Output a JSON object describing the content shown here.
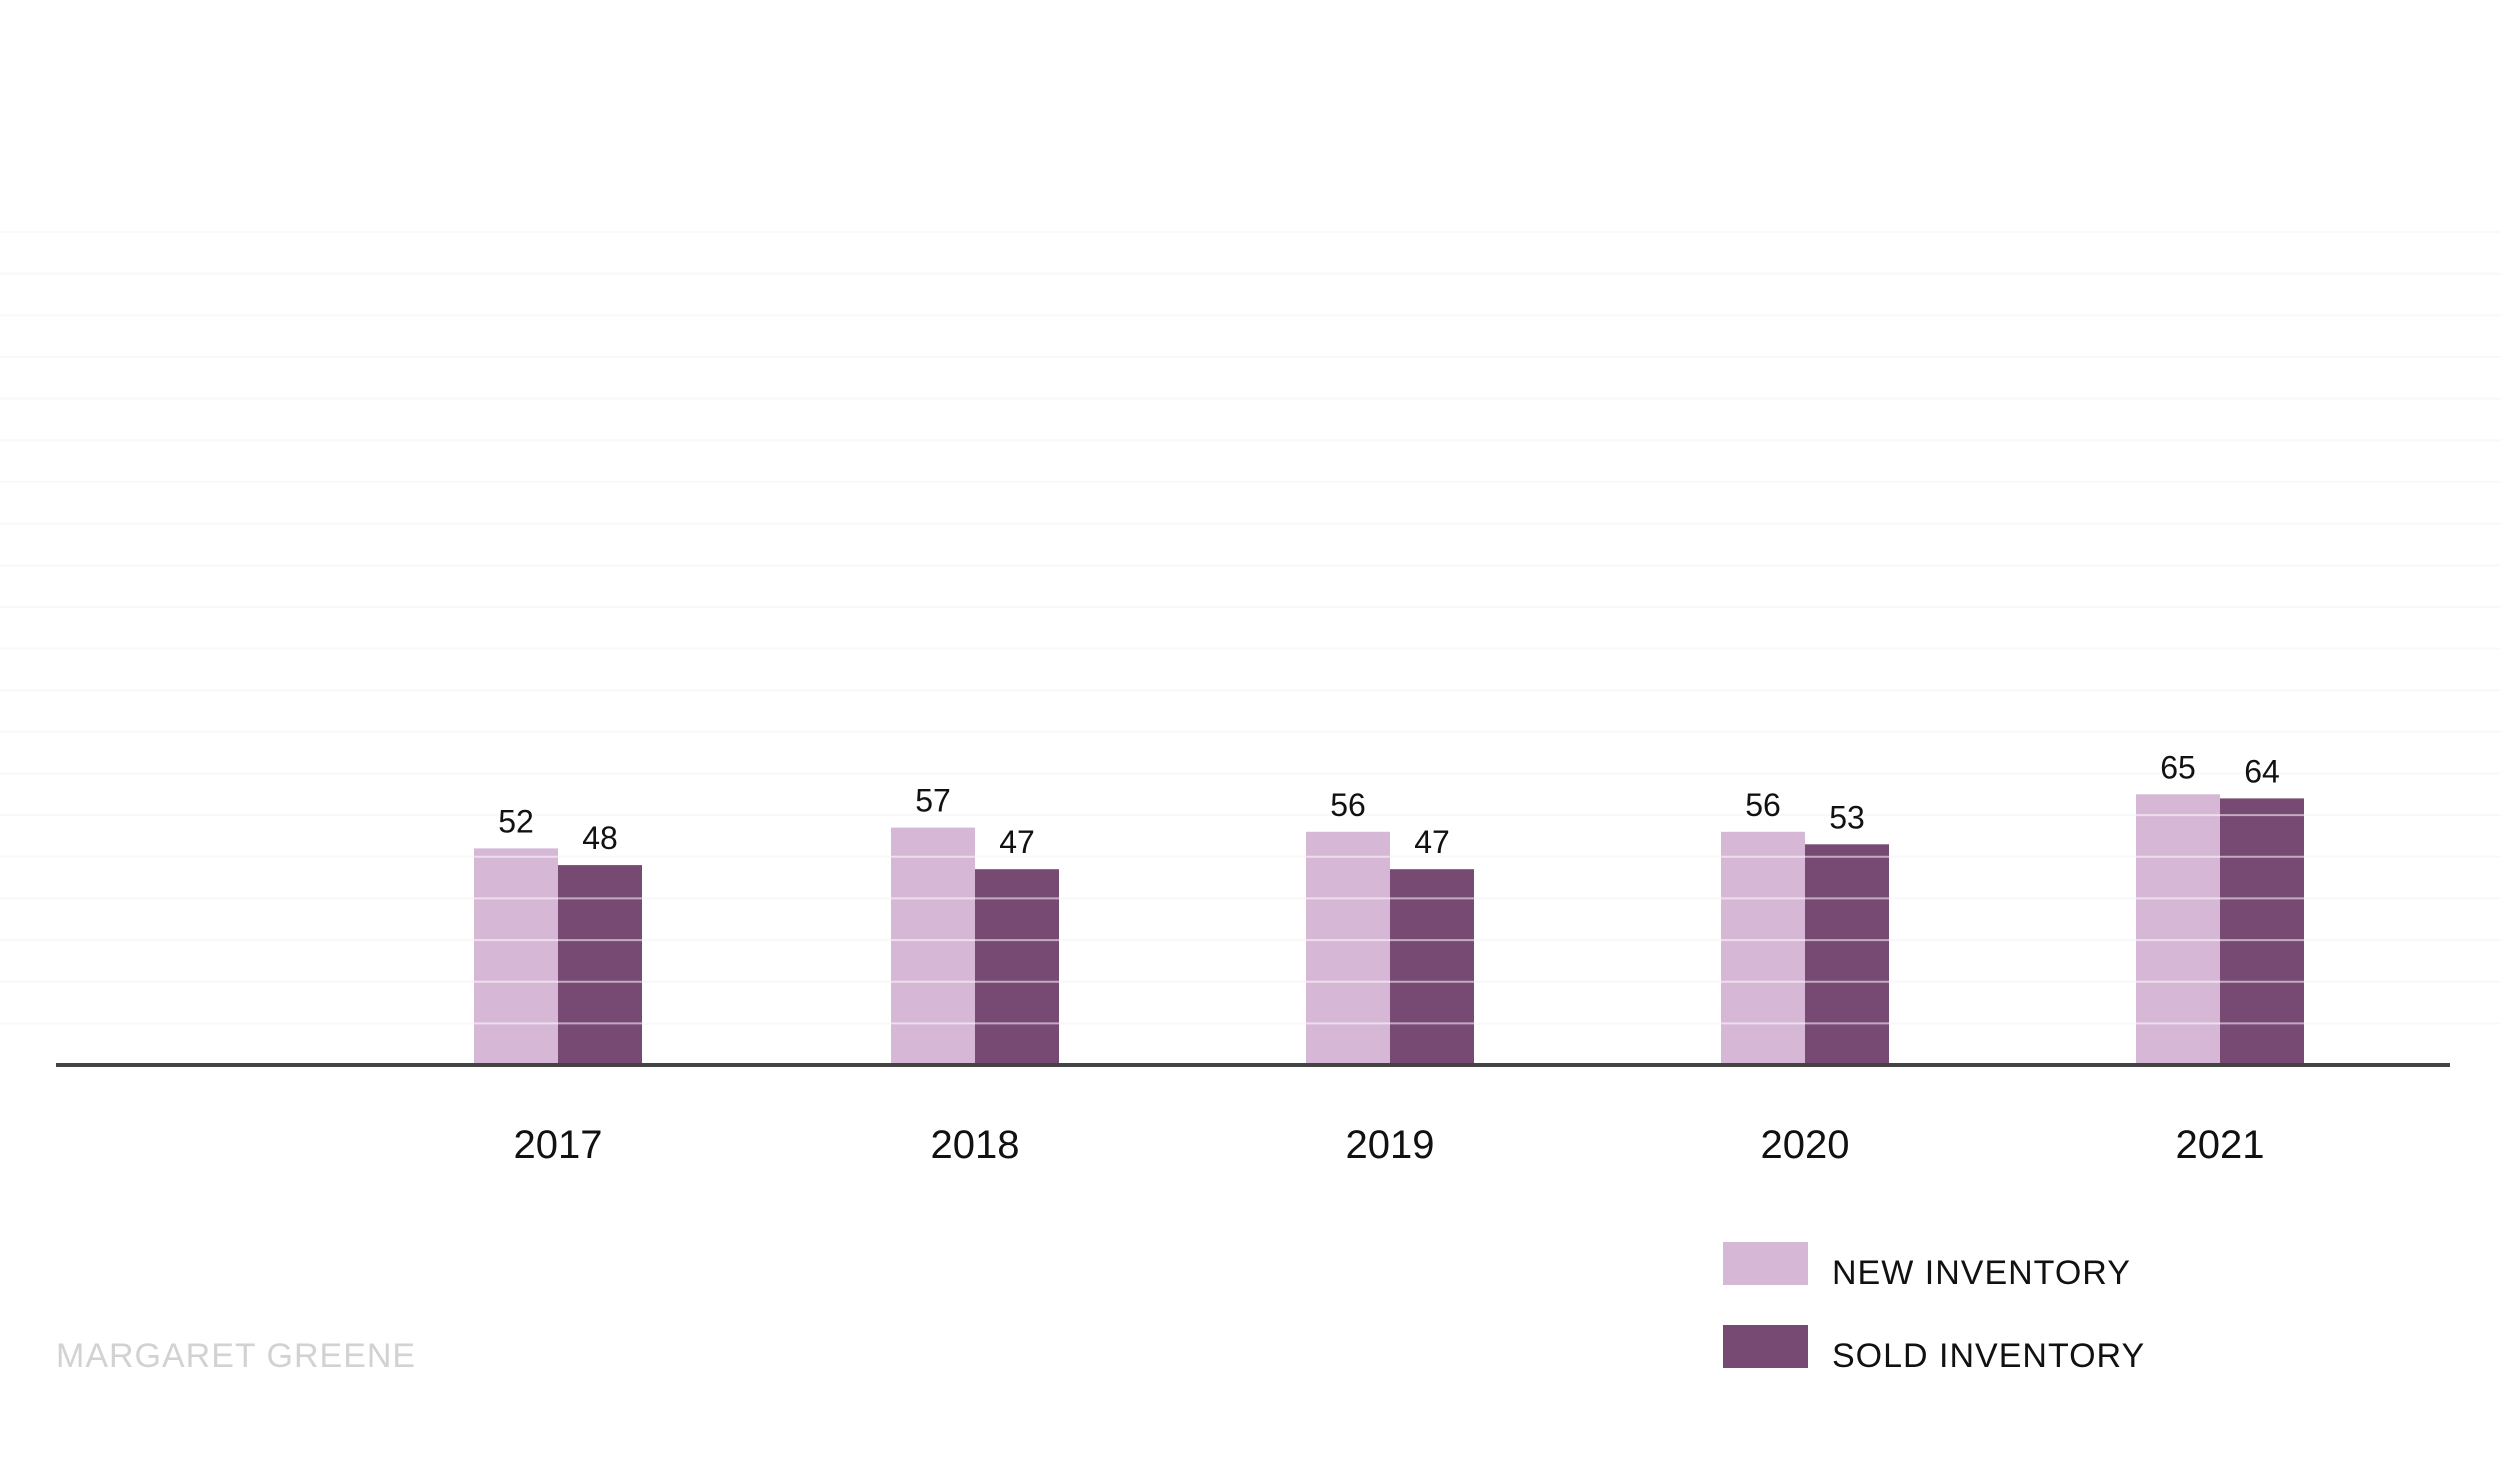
{
  "colors": {
    "new": "#d6b8d6",
    "sold": "#764a73",
    "axis": "#444444",
    "grid": "#f2f2f2"
  },
  "footer": {
    "credit": "MARGARET GREENE"
  },
  "chart_data": {
    "type": "bar",
    "title": "",
    "xlabel": "",
    "ylabel": "",
    "categories": [
      "2017",
      "2018",
      "2019",
      "2020",
      "2021"
    ],
    "series": [
      {
        "name": "NEW INVENTORY",
        "values": [
          52,
          57,
          56,
          56,
          65
        ]
      },
      {
        "name": "SOLD INVENTORY",
        "values": [
          48,
          47,
          47,
          53,
          64
        ]
      }
    ],
    "ylim": [
      0,
      200
    ],
    "grid": true,
    "legend": "bottom-right"
  }
}
